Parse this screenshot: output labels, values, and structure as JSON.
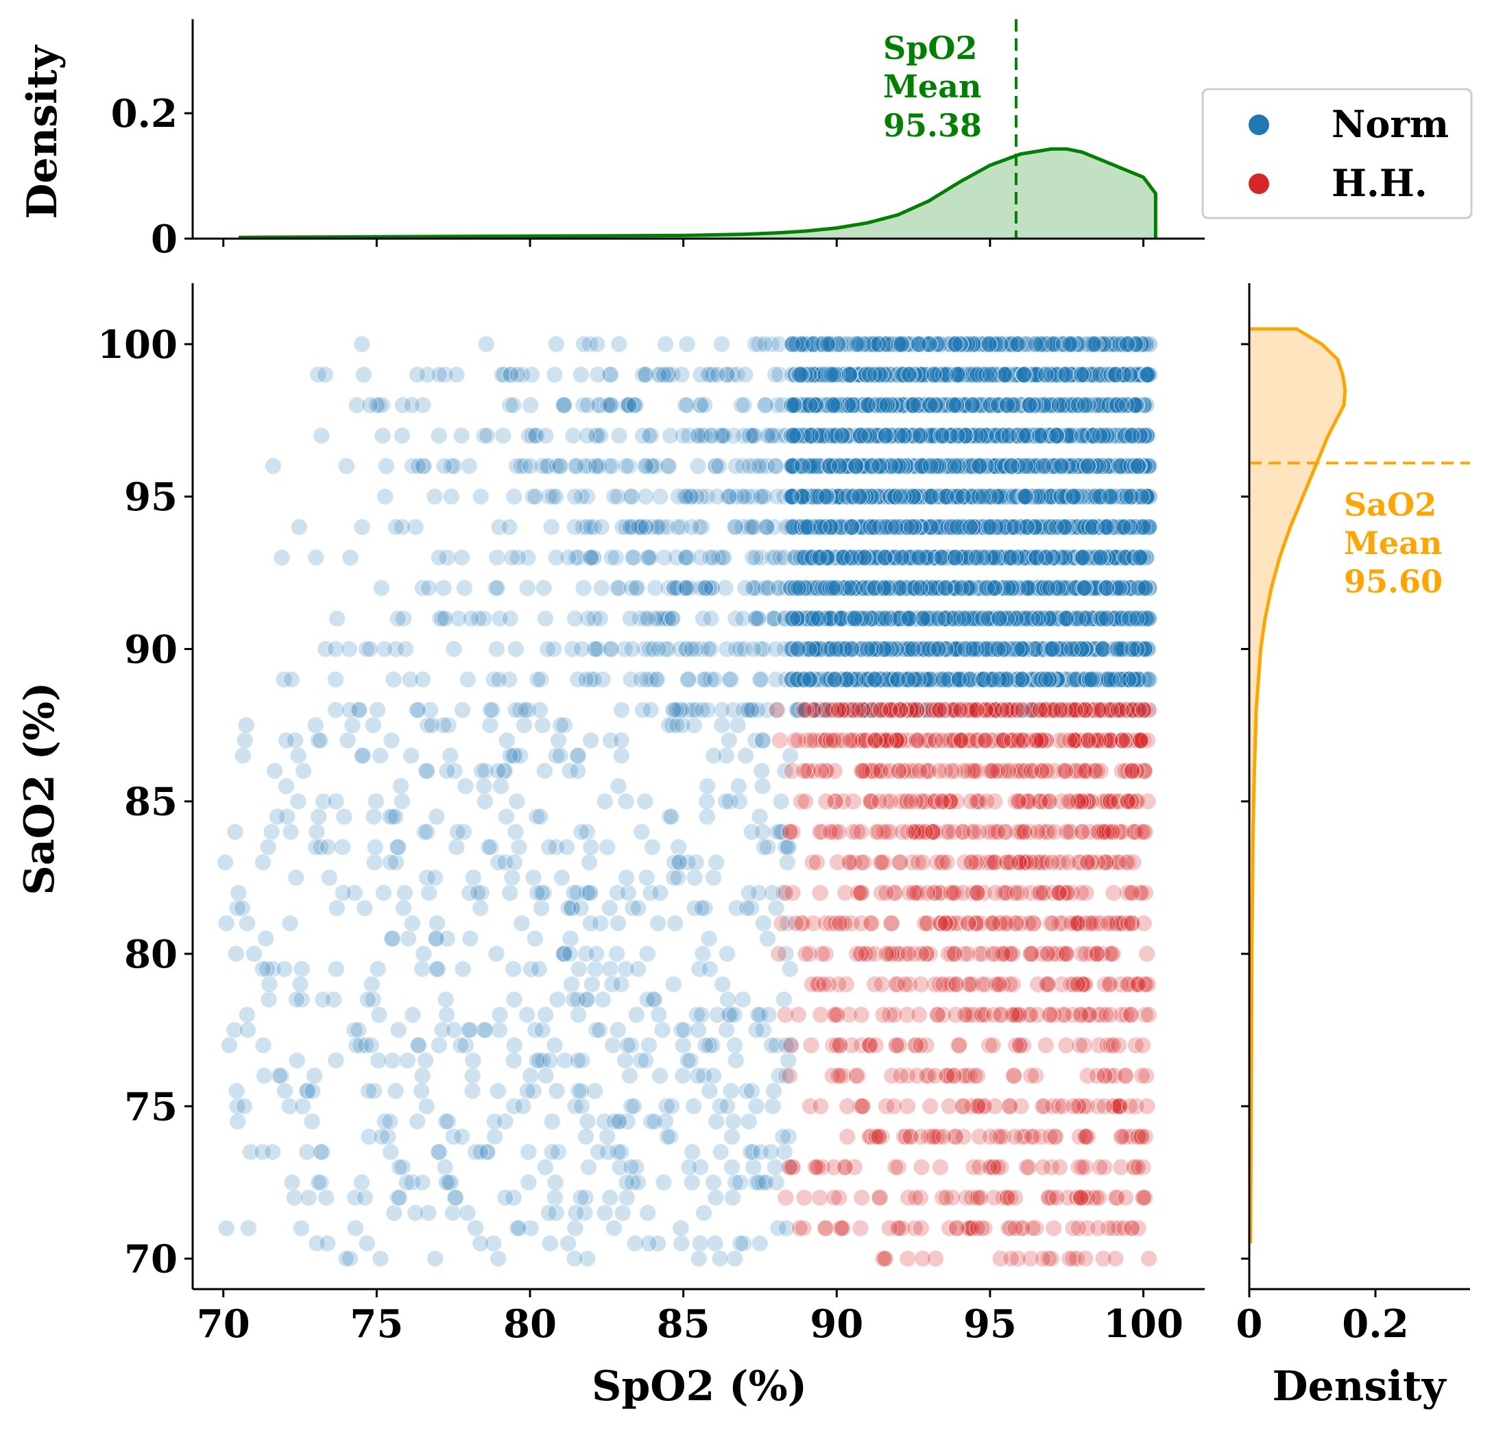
{
  "chart_data": [
    {
      "type": "scatter",
      "name": "main-joint-scatter",
      "xlabel": "SpO2 (%)",
      "ylabel": "SaO2 (%)",
      "xlim": [
        69,
        102
      ],
      "ylim": [
        69,
        102
      ],
      "xticks": [
        "70",
        "75",
        "80",
        "85",
        "90",
        "95",
        "100"
      ],
      "yticks": [
        "70",
        "75",
        "80",
        "85",
        "90",
        "95",
        "100"
      ],
      "grid": false,
      "legend_position": "top-right",
      "series": [
        {
          "name": "Norm",
          "color": "#1f77b4",
          "rule": "SaO2 >= 88",
          "x_range": [
            70,
            100
          ],
          "y_range": [
            88,
            100
          ],
          "dense_region": {
            "x": [
              89,
              100
            ],
            "y": [
              88,
              100
            ]
          }
        },
        {
          "name": "H.H.",
          "color": "#d62728",
          "rule": "SaO2 < 88 and SpO2 >= 88",
          "x_range": [
            88,
            100
          ],
          "y_range": [
            70,
            88
          ],
          "dense_region": {
            "x": [
              89,
              100
            ],
            "y": [
              84,
              88
            ]
          }
        }
      ],
      "light_region": {
        "color": "#1f77b4",
        "x_range": [
          70,
          88
        ],
        "y_range": [
          70,
          88
        ]
      }
    },
    {
      "type": "area",
      "name": "spo2-marginal-density",
      "ylabel": "Density",
      "yticks": [
        "0",
        "0.2"
      ],
      "ylim": [
        0,
        0.35
      ],
      "color": "#008000",
      "fill": "#c2e0c2",
      "x": [
        70.5,
        75,
        80,
        85,
        87,
        88,
        89,
        90,
        91,
        92,
        93,
        94,
        95,
        96,
        97,
        97.5,
        98,
        99,
        99.5,
        100,
        100.4
      ],
      "y": [
        0.002,
        0.003,
        0.004,
        0.005,
        0.007,
        0.009,
        0.012,
        0.017,
        0.025,
        0.038,
        0.06,
        0.09,
        0.117,
        0.135,
        0.143,
        0.143,
        0.138,
        0.118,
        0.108,
        0.098,
        0.072
      ],
      "mean_label": [
        "SpO2",
        "Mean",
        "95.38"
      ],
      "mean_value": 95.38
    },
    {
      "type": "area",
      "name": "sao2-marginal-density",
      "xlabel": "Density",
      "xticks": [
        "0",
        "0.2"
      ],
      "xlim": [
        0,
        0.35
      ],
      "color": "#ffa500",
      "fill": "#fee5c0",
      "y": [
        70.5,
        75,
        80,
        84,
        86,
        88,
        90,
        91,
        92,
        93,
        94,
        95,
        96,
        97,
        98,
        98.5,
        99,
        99.5,
        100,
        100.5
      ],
      "x": [
        0.002,
        0.003,
        0.004,
        0.006,
        0.008,
        0.011,
        0.018,
        0.025,
        0.035,
        0.048,
        0.065,
        0.085,
        0.105,
        0.125,
        0.15,
        0.152,
        0.148,
        0.14,
        0.115,
        0.075
      ],
      "mean_label": [
        "SaO2",
        "Mean",
        "95.60"
      ],
      "mean_value": 95.6
    }
  ],
  "legend": {
    "items": [
      {
        "label": "Norm",
        "color": "#1f77b4"
      },
      {
        "label": "H.H.",
        "color": "#d62728"
      }
    ]
  }
}
